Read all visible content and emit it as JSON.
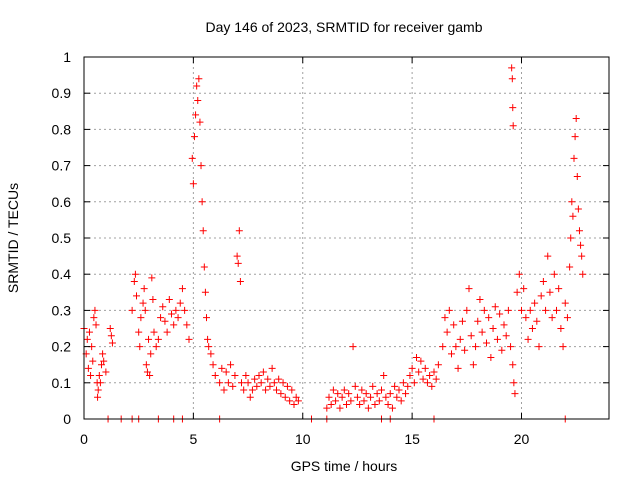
{
  "chart_data": {
    "type": "scatter",
    "title": "Day 146 of 2023, SRMTID for receiver gamb",
    "xlabel": "GPS time / hours",
    "ylabel": "SRMTID / TECUs",
    "xlim": [
      0,
      24
    ],
    "ylim": [
      0,
      1
    ],
    "xticks": [
      0,
      5,
      10,
      15,
      20
    ],
    "xtick_labels": [
      "0",
      "5",
      "10",
      "15",
      "20"
    ],
    "yticks": [
      0,
      0.1,
      0.2,
      0.3,
      0.4,
      0.5,
      0.6,
      0.7,
      0.8,
      0.9,
      1
    ],
    "ytick_labels": [
      "0",
      "0.1",
      "0.2",
      "0.3",
      "0.4",
      "0.5",
      "0.6",
      "0.7",
      "0.8",
      "0.9",
      "1"
    ],
    "grid": true,
    "marker": "+",
    "color": "#ff0000",
    "series": [
      {
        "name": "SRMTID",
        "points": [
          [
            0.0,
            0.25
          ],
          [
            0.1,
            0.18
          ],
          [
            0.15,
            0.22
          ],
          [
            0.2,
            0.14
          ],
          [
            0.25,
            0.24
          ],
          [
            0.3,
            0.12
          ],
          [
            0.35,
            0.2
          ],
          [
            0.4,
            0.16
          ],
          [
            0.45,
            0.28
          ],
          [
            0.5,
            0.3
          ],
          [
            0.55,
            0.26
          ],
          [
            0.6,
            0.1
          ],
          [
            0.62,
            0.06
          ],
          [
            0.65,
            0.08
          ],
          [
            0.7,
            0.12
          ],
          [
            0.75,
            0.1
          ],
          [
            0.8,
            0.15
          ],
          [
            0.85,
            0.18
          ],
          [
            0.9,
            0.16
          ],
          [
            1.0,
            0.13
          ],
          [
            1.2,
            0.25
          ],
          [
            1.25,
            0.23
          ],
          [
            1.3,
            0.21
          ],
          [
            2.2,
            0.3
          ],
          [
            2.3,
            0.38
          ],
          [
            2.35,
            0.4
          ],
          [
            2.4,
            0.34
          ],
          [
            2.5,
            0.24
          ],
          [
            2.55,
            0.2
          ],
          [
            2.6,
            0.28
          ],
          [
            2.7,
            0.32
          ],
          [
            2.75,
            0.36
          ],
          [
            2.8,
            0.3
          ],
          [
            2.85,
            0.15
          ],
          [
            2.9,
            0.13
          ],
          [
            2.95,
            0.22
          ],
          [
            3.0,
            0.12
          ],
          [
            3.05,
            0.18
          ],
          [
            3.1,
            0.39
          ],
          [
            3.15,
            0.33
          ],
          [
            3.2,
            0.24
          ],
          [
            3.3,
            0.2
          ],
          [
            3.4,
            0.22
          ],
          [
            3.5,
            0.28
          ],
          [
            3.6,
            0.31
          ],
          [
            3.7,
            0.27
          ],
          [
            3.8,
            0.24
          ],
          [
            3.9,
            0.33
          ],
          [
            4.0,
            0.29
          ],
          [
            4.1,
            0.26
          ],
          [
            4.2,
            0.3
          ],
          [
            4.3,
            0.28
          ],
          [
            4.4,
            0.32
          ],
          [
            4.5,
            0.36
          ],
          [
            4.6,
            0.3
          ],
          [
            4.7,
            0.26
          ],
          [
            4.8,
            0.22
          ],
          [
            4.95,
            0.72
          ],
          [
            5.0,
            0.65
          ],
          [
            5.05,
            0.78
          ],
          [
            5.1,
            0.84
          ],
          [
            5.15,
            0.92
          ],
          [
            5.2,
            0.88
          ],
          [
            5.25,
            0.94
          ],
          [
            5.3,
            0.82
          ],
          [
            5.35,
            0.7
          ],
          [
            5.4,
            0.6
          ],
          [
            5.45,
            0.52
          ],
          [
            5.5,
            0.42
          ],
          [
            5.55,
            0.35
          ],
          [
            5.6,
            0.28
          ],
          [
            5.65,
            0.22
          ],
          [
            5.7,
            0.2
          ],
          [
            5.8,
            0.18
          ],
          [
            5.9,
            0.15
          ],
          [
            6.0,
            0.12
          ],
          [
            6.2,
            0.1
          ],
          [
            6.3,
            0.14
          ],
          [
            6.4,
            0.08
          ],
          [
            6.5,
            0.13
          ],
          [
            6.6,
            0.1
          ],
          [
            6.7,
            0.15
          ],
          [
            6.8,
            0.09
          ],
          [
            6.9,
            0.12
          ],
          [
            7.0,
            0.45
          ],
          [
            7.05,
            0.43
          ],
          [
            7.1,
            0.52
          ],
          [
            7.15,
            0.38
          ],
          [
            7.2,
            0.1
          ],
          [
            7.3,
            0.08
          ],
          [
            7.4,
            0.12
          ],
          [
            7.5,
            0.1
          ],
          [
            7.6,
            0.06
          ],
          [
            7.7,
            0.08
          ],
          [
            7.8,
            0.11
          ],
          [
            7.9,
            0.09
          ],
          [
            8.0,
            0.12
          ],
          [
            8.1,
            0.1
          ],
          [
            8.2,
            0.13
          ],
          [
            8.3,
            0.08
          ],
          [
            8.4,
            0.11
          ],
          [
            8.5,
            0.09
          ],
          [
            8.6,
            0.14
          ],
          [
            8.7,
            0.1
          ],
          [
            8.8,
            0.08
          ],
          [
            8.9,
            0.11
          ],
          [
            9.0,
            0.07
          ],
          [
            9.1,
            0.1
          ],
          [
            9.2,
            0.06
          ],
          [
            9.3,
            0.09
          ],
          [
            9.4,
            0.05
          ],
          [
            9.5,
            0.08
          ],
          [
            9.6,
            0.04
          ],
          [
            9.7,
            0.06
          ],
          [
            9.8,
            0.05
          ],
          [
            11.1,
            0.03
          ],
          [
            11.2,
            0.06
          ],
          [
            11.3,
            0.04
          ],
          [
            11.4,
            0.08
          ],
          [
            11.5,
            0.05
          ],
          [
            11.6,
            0.07
          ],
          [
            11.7,
            0.03
          ],
          [
            11.8,
            0.06
          ],
          [
            11.9,
            0.08
          ],
          [
            12.0,
            0.04
          ],
          [
            12.1,
            0.07
          ],
          [
            12.2,
            0.05
          ],
          [
            12.3,
            0.2
          ],
          [
            12.4,
            0.09
          ],
          [
            12.5,
            0.06
          ],
          [
            12.6,
            0.04
          ],
          [
            12.7,
            0.08
          ],
          [
            12.8,
            0.05
          ],
          [
            12.9,
            0.07
          ],
          [
            13.0,
            0.03
          ],
          [
            13.1,
            0.06
          ],
          [
            13.2,
            0.09
          ],
          [
            13.3,
            0.04
          ],
          [
            13.4,
            0.07
          ],
          [
            13.5,
            0.05
          ],
          [
            13.6,
            0.08
          ],
          [
            13.7,
            0.12
          ],
          [
            13.8,
            0.06
          ],
          [
            13.9,
            0.04
          ],
          [
            14.0,
            0.07
          ],
          [
            14.1,
            0.03
          ],
          [
            14.2,
            0.09
          ],
          [
            14.3,
            0.06
          ],
          [
            14.4,
            0.08
          ],
          [
            14.5,
            0.05
          ],
          [
            14.6,
            0.1
          ],
          [
            14.7,
            0.07
          ],
          [
            14.8,
            0.09
          ],
          [
            14.9,
            0.12
          ],
          [
            15.0,
            0.14
          ],
          [
            15.1,
            0.1
          ],
          [
            15.2,
            0.17
          ],
          [
            15.3,
            0.13
          ],
          [
            15.4,
            0.16
          ],
          [
            15.5,
            0.11
          ],
          [
            15.6,
            0.14
          ],
          [
            15.7,
            0.1
          ],
          [
            15.8,
            0.12
          ],
          [
            15.9,
            0.09
          ],
          [
            16.0,
            0.13
          ],
          [
            16.1,
            0.11
          ],
          [
            16.2,
            0.15
          ],
          [
            16.4,
            0.2
          ],
          [
            16.5,
            0.28
          ],
          [
            16.6,
            0.24
          ],
          [
            16.7,
            0.3
          ],
          [
            16.8,
            0.18
          ],
          [
            16.9,
            0.26
          ],
          [
            17.0,
            0.2
          ],
          [
            17.1,
            0.14
          ],
          [
            17.2,
            0.22
          ],
          [
            17.3,
            0.27
          ],
          [
            17.4,
            0.19
          ],
          [
            17.5,
            0.3
          ],
          [
            17.6,
            0.36
          ],
          [
            17.7,
            0.23
          ],
          [
            17.8,
            0.15
          ],
          [
            17.9,
            0.2
          ],
          [
            18.0,
            0.27
          ],
          [
            18.1,
            0.33
          ],
          [
            18.2,
            0.24
          ],
          [
            18.3,
            0.3
          ],
          [
            18.4,
            0.21
          ],
          [
            18.5,
            0.28
          ],
          [
            18.6,
            0.17
          ],
          [
            18.7,
            0.25
          ],
          [
            18.8,
            0.31
          ],
          [
            18.9,
            0.22
          ],
          [
            19.0,
            0.29
          ],
          [
            19.1,
            0.19
          ],
          [
            19.2,
            0.26
          ],
          [
            19.3,
            0.23
          ],
          [
            19.4,
            0.3
          ],
          [
            19.5,
            0.2
          ],
          [
            19.6,
            0.15
          ],
          [
            19.65,
            0.1
          ],
          [
            19.7,
            0.07
          ],
          [
            19.55,
            0.97
          ],
          [
            19.58,
            0.94
          ],
          [
            19.6,
            0.86
          ],
          [
            19.62,
            0.81
          ],
          [
            19.8,
            0.35
          ],
          [
            19.9,
            0.4
          ],
          [
            20.0,
            0.3
          ],
          [
            20.1,
            0.36
          ],
          [
            20.2,
            0.28
          ],
          [
            20.3,
            0.22
          ],
          [
            20.4,
            0.3
          ],
          [
            20.5,
            0.25
          ],
          [
            20.6,
            0.32
          ],
          [
            20.7,
            0.27
          ],
          [
            20.8,
            0.2
          ],
          [
            20.9,
            0.34
          ],
          [
            21.0,
            0.38
          ],
          [
            21.1,
            0.3
          ],
          [
            21.2,
            0.45
          ],
          [
            21.3,
            0.35
          ],
          [
            21.4,
            0.28
          ],
          [
            21.5,
            0.4
          ],
          [
            21.6,
            0.3
          ],
          [
            21.7,
            0.36
          ],
          [
            21.8,
            0.25
          ],
          [
            21.9,
            0.2
          ],
          [
            22.0,
            0.32
          ],
          [
            22.1,
            0.28
          ],
          [
            22.2,
            0.42
          ],
          [
            22.25,
            0.5
          ],
          [
            22.3,
            0.6
          ],
          [
            22.35,
            0.56
          ],
          [
            22.4,
            0.72
          ],
          [
            22.45,
            0.78
          ],
          [
            22.5,
            0.83
          ],
          [
            22.55,
            0.67
          ],
          [
            22.6,
            0.58
          ],
          [
            22.65,
            0.52
          ],
          [
            22.7,
            0.48
          ],
          [
            22.75,
            0.45
          ],
          [
            22.8,
            0.4
          ],
          [
            1.1,
            0.0
          ],
          [
            1.7,
            0.0
          ],
          [
            2.2,
            0.0
          ],
          [
            2.5,
            0.0
          ],
          [
            3.4,
            0.0
          ],
          [
            4.1,
            0.0
          ],
          [
            4.5,
            0.0
          ],
          [
            6.2,
            0.0
          ],
          [
            10.4,
            0.0
          ],
          [
            11.1,
            0.0
          ],
          [
            13.6,
            0.0
          ],
          [
            14.0,
            0.0
          ],
          [
            16.0,
            0.0
          ],
          [
            22.0,
            0.0
          ]
        ]
      }
    ]
  }
}
